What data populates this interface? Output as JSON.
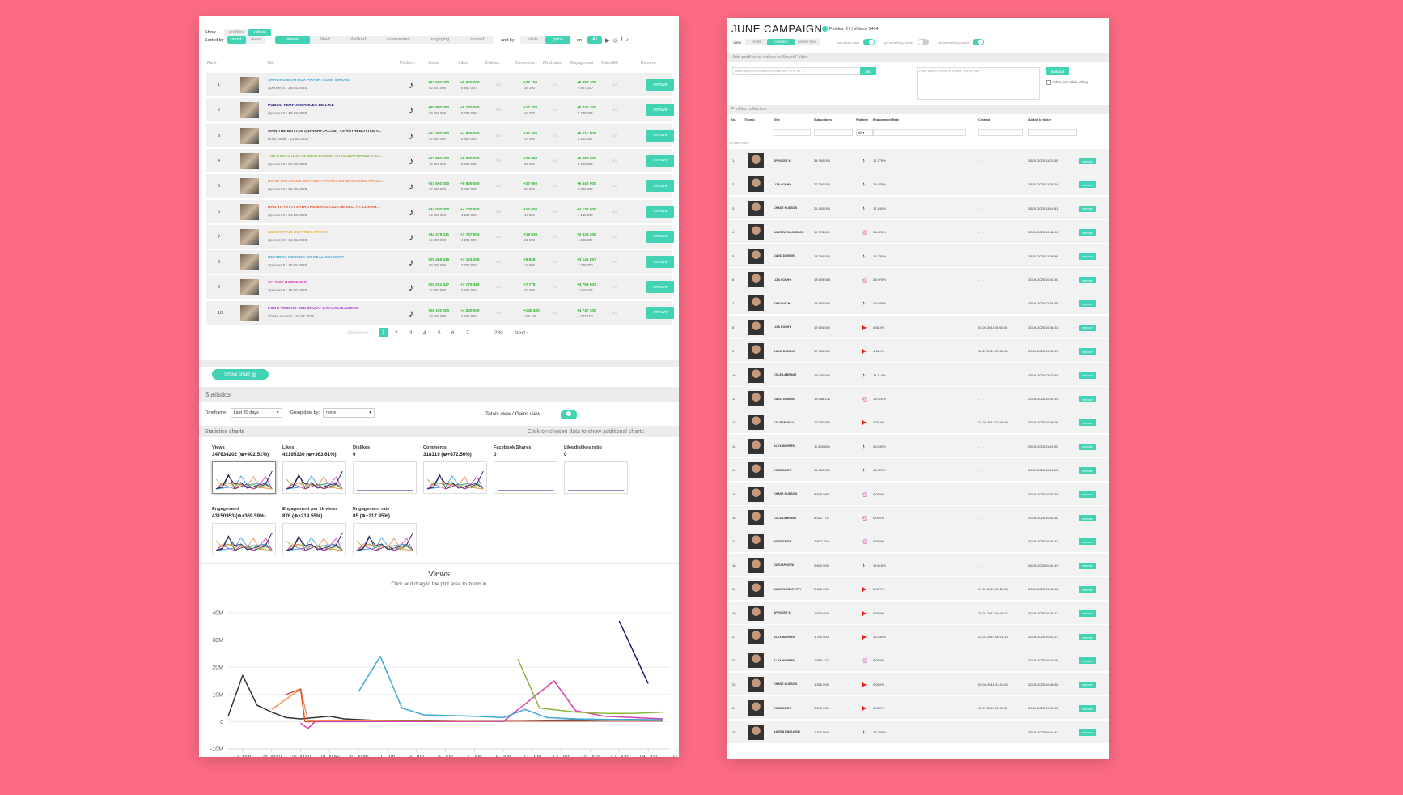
{
  "left": {
    "show_label": "Show",
    "show_tabs": [
      "profiles",
      "videos"
    ],
    "sorted_label": "Sorted by",
    "sort_tabs": [
      "most",
      "least"
    ],
    "metric_tabs": [
      "viewed",
      "liked",
      "disliked",
      "commented",
      "engaging",
      "shared"
    ],
    "andby_label": "and by",
    "andby_tabs": [
      "totals",
      "gains"
    ],
    "on_label": "on",
    "on_all": "All",
    "headers": [
      "Rank",
      "Title",
      "Platform",
      "Views",
      "Likes",
      "Dislikes",
      "Comments",
      "FB shares",
      "Engagement",
      "Video ER",
      "Remove"
    ],
    "rows": [
      {
        "rank": "1",
        "title": "SHAVING BEATBOX PRANK GONE WRONG",
        "sub": "Spencer X : 29.05.2020",
        "color": "#3fa9d6",
        "views_g": "+62 600 000",
        "views_t": "62 600 000",
        "likes_g": "+6 900 000",
        "likes_t": "6 900 000",
        "dis": "n/a",
        "com_g": "+36 100",
        "com_t": "36 100",
        "fb": "n/a",
        "eng_g": "+6 957 200",
        "eng_t": "6 957 200",
        "er": "n/a"
      },
      {
        "rank": "2",
        "title": "PUBLIC PERFORMANCES BE LIKE",
        "sub": "Spencer X : 16.06.2020",
        "color": "#1a1a7a",
        "views_g": "+50 900 000",
        "views_t": "50 900 000",
        "likes_g": "+5 700 000",
        "likes_t": "5 700 000",
        "dis": "n/a",
        "com_g": "+17 700",
        "com_t": "17 700",
        "fb": "n/a",
        "eng_g": "+5 748 700",
        "eng_t": "5 748 700",
        "er": "n/a"
      },
      {
        "rank": "3",
        "title": "SPIN THE BOTTLE @DWARFJACOB_ #SPINTHEBOTTLE #...",
        "sub": "Ross Smith : 21.05.2020",
        "color": "#333333",
        "views_g": "+44 300 000",
        "views_t": "44 300 000",
        "likes_g": "+4 800 000",
        "likes_t": "4 800 000",
        "dis": "n/a",
        "com_g": "+37 400",
        "com_t": "37 400",
        "fb": "n/a",
        "eng_g": "+5 211 500",
        "eng_t": "5 211 500",
        "er": "n/a"
      },
      {
        "rank": "4",
        "title": "THE EVOLUTION OF BEATBOXING #ITSJONATHANLE #JU...",
        "sub": "Spencer X : 07.06.2020",
        "color": "#8bb83a",
        "views_g": "+42 800 000",
        "views_t": "42 800 000",
        "likes_g": "+5 900 000",
        "likes_t": "5 900 000",
        "dis": "n/a",
        "com_g": "+26 000",
        "com_t": "26 000",
        "fb": "n/a",
        "eng_g": "+5 969 000",
        "eng_t": "5 969 000",
        "er": "n/a"
      },
      {
        "rank": "5",
        "title": "BONE CRACKING BEATBOX PRANK GONE WRONG #ITSJO...",
        "sub": "Spencer X : 25.05.2020",
        "color": "#f0905a",
        "views_g": "+37 600 000",
        "views_t": "37 600 000",
        "likes_g": "+5 800 000",
        "likes_t": "5 800 000",
        "dis": "n/a",
        "com_g": "+27 000",
        "com_t": "27 000",
        "fb": "n/a",
        "eng_g": "+5 842 900",
        "eng_t": "5 842 900",
        "er": "n/a"
      },
      {
        "rank": "6",
        "title": "HAD TO HIT IT WITH THE BROS #JUSTMAIKO #ITSJONAT...",
        "sub": "Spencer X : 24.05.2020",
        "color": "#e0502a",
        "views_g": "+34 000 000",
        "views_t": "34 000 000",
        "likes_g": "+4 100 000",
        "likes_t": "4 100 000",
        "dis": "n/a",
        "com_g": "+14 500",
        "com_t": "14 500",
        "fb": "n/a",
        "eng_g": "+4 138 900",
        "eng_t": "4 138 900",
        "er": "n/a"
      },
      {
        "rank": "7",
        "title": "KIDNAPPING BEATBOX PRANK",
        "sub": "Spencer X : 14.05.2020",
        "color": "#f0b030",
        "views_g": "+34 278 231",
        "views_t": "34 200 000",
        "likes_g": "+3 787 092",
        "likes_t": "4 200 000",
        "dis": "n/a",
        "com_g": "+19 030",
        "com_t": "21 600",
        "fb": "n/a",
        "eng_g": "+3 838 400",
        "eng_t": "4 245 000",
        "er": "n/a"
      },
      {
        "rank": "8",
        "title": "BEATBOX SOUNDS OR REAL SOUNDS?",
        "sub": "Spencer X : 16.05.2020",
        "color": "#3fa9d6",
        "views_g": "+29 468 336",
        "views_t": "58 800 000",
        "likes_g": "+3 124 206",
        "likes_t": "7 700 000",
        "dis": "n/a",
        "com_g": "+5 839",
        "com_t": "14 600",
        "fb": "n/a",
        "eng_g": "+3 141 057",
        "eng_t": "7 736 000",
        "er": "n/a"
      },
      {
        "rank": "9",
        "title": "SO THIS HAPPENED...",
        "sub": "Spencer X : 18.05.2020",
        "color": "#d63fb0",
        "views_g": "+29 261 347",
        "views_t": "34 300 000",
        "likes_g": "+3 779 486",
        "likes_t": "3 500 000",
        "dis": "n/a",
        "com_g": "+7 779",
        "com_t": "10 200",
        "fb": "n/a",
        "eng_g": "+3 793 603",
        "eng_t": "3 510 427",
        "er": "n/a"
      },
      {
        "rank": "10",
        "title": "LONG TIME NO SEE BRUVV @CHARLIDAMELIO",
        "sub": "Chase Hudson : 10.06.2020",
        "color": "#a53ed6",
        "views_g": "+28 100 000",
        "views_t": "28 100 000",
        "likes_g": "+4 500 000",
        "likes_t": "4 500 000",
        "dis": "n/a",
        "com_g": "+145 400",
        "com_t": "145 400",
        "fb": "n/a",
        "eng_g": "+4 747 100",
        "eng_t": "4 747 100",
        "er": "n/a"
      }
    ],
    "remove_label": "remove",
    "pagination": [
      "‹ Previous",
      "1",
      "2",
      "3",
      "4",
      "5",
      "6",
      "7",
      "...",
      "239",
      "Next ›"
    ],
    "show_chart": "Show chart",
    "statistics": "Statistics",
    "timeframe_label": "Timeframe:",
    "timeframe_value": "Last 30 days",
    "group_label": "Group date by:",
    "group_value": "none",
    "totals_gains": "Totals view / Gains view",
    "stat_charts": "Statistics charts",
    "click_hint": "Click on chosen data to show additional charts",
    "mini": [
      {
        "t": "Views",
        "v": "347634202 (⊕+402.51%)"
      },
      {
        "t": "Likes",
        "v": "42195330 (⊕+363.61%)"
      },
      {
        "t": "Dislikes",
        "v": "0"
      },
      {
        "t": "Comments",
        "v": "318319 (⊕+872.56%)"
      },
      {
        "t": "Facebook Shares",
        "v": "0"
      },
      {
        "t": "Like/dislikes ratio",
        "v": "0"
      },
      {
        "t": "Engagement",
        "v": "43150953 (⊕+369.59%)"
      },
      {
        "t": "Engagement per 1k views",
        "v": "876 (⊕+219.55%)"
      },
      {
        "t": "Engagement rate",
        "v": "85 (⊕+217.95%)"
      }
    ]
  },
  "chart_data": {
    "type": "line",
    "title": "Views",
    "subtitle": "Click and drag in the plot area to zoom in",
    "ylim": [
      -10000000,
      40000000
    ],
    "yticks": [
      "40M",
      "30M",
      "20M",
      "10M",
      "0",
      "-10M"
    ],
    "x": [
      "22. May",
      "24. May",
      "26. May",
      "28. May",
      "30. May",
      "1. Jun",
      "3. Jun",
      "5. Jun",
      "7. Jun",
      "9. Jun",
      "11. Jun",
      "13. Jun",
      "15. Jun",
      "17. Jun",
      "19. Jun",
      "21. ."
    ],
    "series": [
      {
        "color": "#333333",
        "points": [
          [
            21,
            2000000
          ],
          [
            22,
            17000000
          ],
          [
            23,
            6000000
          ],
          [
            24,
            3500000
          ],
          [
            25,
            1500000
          ],
          [
            26,
            1000000
          ],
          [
            27,
            1500000
          ],
          [
            28,
            2000000
          ],
          [
            29,
            1000000
          ],
          [
            31,
            500000
          ],
          [
            33,
            500000
          ],
          [
            35,
            500000
          ],
          [
            37,
            400000
          ],
          [
            39,
            400000
          ],
          [
            41,
            400000
          ],
          [
            43,
            500000
          ],
          [
            45,
            600000
          ],
          [
            47,
            700000
          ],
          [
            49,
            800000
          ],
          [
            51,
            400000
          ]
        ]
      },
      {
        "color": "#f0905a",
        "points": [
          [
            24,
            4500000
          ],
          [
            26,
            12000000
          ],
          [
            26.5,
            500000
          ],
          [
            28,
            500000
          ],
          [
            30,
            500000
          ],
          [
            34,
            400000
          ],
          [
            40,
            300000
          ],
          [
            51,
            300000
          ]
        ]
      },
      {
        "color": "#e0502a",
        "points": [
          [
            25,
            10000000
          ],
          [
            26,
            12000000
          ],
          [
            26.3,
            0
          ],
          [
            30,
            200000
          ],
          [
            40,
            200000
          ],
          [
            51,
            200000
          ]
        ]
      },
      {
        "color": "#d63fb0",
        "points": [
          [
            26,
            -500000
          ],
          [
            26.5,
            -2500000
          ],
          [
            27,
            0
          ],
          [
            40,
            100000
          ],
          [
            43.5,
            15000000
          ],
          [
            45,
            4000000
          ],
          [
            47,
            2000000
          ],
          [
            51,
            1000000
          ]
        ]
      },
      {
        "color": "#3fa9d6",
        "points": [
          [
            30,
            11000000
          ],
          [
            31.5,
            24000000
          ],
          [
            33,
            5000000
          ],
          [
            34.5,
            2500000
          ],
          [
            36,
            2300000
          ],
          [
            38,
            2000000
          ],
          [
            40,
            1500000
          ],
          [
            41.5,
            4500000
          ],
          [
            43,
            1500000
          ],
          [
            45,
            1000000
          ],
          [
            47,
            800000
          ],
          [
            51,
            700000
          ]
        ]
      },
      {
        "color": "#8bb83a",
        "points": [
          [
            41,
            23000000
          ],
          [
            42.5,
            5000000
          ],
          [
            45,
            3500000
          ],
          [
            47,
            3000000
          ],
          [
            49,
            3000000
          ],
          [
            51,
            3500000
          ]
        ]
      },
      {
        "color": "#1a1a7a",
        "points": [
          [
            48,
            37000000
          ],
          [
            50,
            14000000
          ]
        ]
      }
    ]
  },
  "right": {
    "title": "JUNE CAMPAIGN",
    "counts": "Profiles: 27 | Videos: 2404",
    "view_label": "View",
    "view_tabs": [
      "charts",
      "collection",
      "content feed"
    ],
    "auto_fetch": "auto-fetch video",
    "get_missing": "get remaining videos",
    "allow_tracking": "allows tracking media",
    "add_section": "Add profiles or videos to Smart Folder",
    "add_placeholder": "paste link (URL) to video or profile on YT, FB, IG, TT",
    "add_btn": "Add",
    "bulk_placeholder": "Paste links to videos or profiles, one per line",
    "bulk_btn": "Bulk add",
    "show_info": "Show info while adding",
    "collection": "Profiles collection",
    "headers": [
      "No.",
      "Thumb",
      "Title",
      "Subscribers",
      "Platform",
      "Engagement Rate",
      "Created",
      "Added to folder"
    ],
    "platform_filter": "All",
    "no_filters": "No active filters",
    "rows": [
      {
        "n": "1",
        "name": "SPENCER X",
        "subs": "34 900 000",
        "pf": "tt",
        "er": "12.770%",
        "created": "-",
        "added": "26.05.2020 11:07:30"
      },
      {
        "n": "2",
        "name": "LIZA KOSHY",
        "subs": "22 200 000",
        "pf": "tt",
        "er": "15.070%",
        "created": "-",
        "added": "26.05.2020 11:05:24"
      },
      {
        "n": "3",
        "name": "CHASE HUDSON",
        "subs": "21 400 000",
        "pf": "tt",
        "er": "17.460%",
        "created": "-",
        "added": "26.05.2020 11:44:51"
      },
      {
        "n": "4",
        "name": "ANDREW BACHELOR",
        "subs": "19 778 691",
        "pf": "ig",
        "er": "15.620%",
        "created": "-",
        "added": "20.06.2020 19:42:06"
      },
      {
        "n": "5",
        "name": "DAVID DOBRIK",
        "subs": "18 700 000",
        "pf": "tt",
        "er": "18.780%",
        "created": "-",
        "added": "26.05.2020 11:36:56"
      },
      {
        "n": "6",
        "name": "LIZA KOSHY",
        "subs": "18 509 083",
        "pf": "ig",
        "er": "23.970%",
        "created": "-",
        "added": "20.06.2020 19:41:30"
      },
      {
        "n": "7",
        "name": "KIRIONACH",
        "subs": "18 100 000",
        "pf": "tt",
        "er": "15.680%",
        "created": "-",
        "added": "26.05.2020 11:38:29"
      },
      {
        "n": "8",
        "name": "LIZA KOSHY",
        "subs": "17 600 000",
        "pf": "yt",
        "er": "4.510%",
        "created": "03.09.2011 00:55:05",
        "added": "20.06.2020 19:46:31"
      },
      {
        "n": "9",
        "name": "DAVID DOBRIK",
        "subs": "17 700 000",
        "pf": "yt",
        "er": "4.110%",
        "created": "18.12.2014 23:35:50",
        "added": "20.06.2020 19:45:37"
      },
      {
        "n": "10",
        "name": "COLE LABRANT",
        "subs": "15 000 000",
        "pf": "tt",
        "er": "14.110%",
        "created": "-",
        "added": "26.05.2020 11:07:54"
      },
      {
        "n": "11",
        "name": "DAVID DOBRIK",
        "subs": "13 086 130",
        "pf": "ig",
        "er": "19.010%",
        "created": "-",
        "added": "20.06.2020 19:44:16"
      },
      {
        "n": "12",
        "name": "COLEANDSAV",
        "subs": "12 000 000",
        "pf": "yt",
        "er": "2.010%",
        "created": "24.08.2012 03:44:00",
        "added": "20.06.2020 19:46:06"
      },
      {
        "n": "13",
        "name": "ALEX WARREN",
        "subs": "11 800 000",
        "pf": "tt",
        "er": "23.090%",
        "created": "-",
        "added": "26.05.2020 11:40:02"
      },
      {
        "n": "14",
        "name": "ROSS SMITH",
        "subs": "10 100 000",
        "pf": "tt",
        "er": "16.320%",
        "created": "-",
        "added": "26.05.2020 11:43:20"
      },
      {
        "n": "15",
        "name": "CHASE HUDSON",
        "subs": "8 595 588",
        "pf": "ig",
        "er": "0.000%",
        "created": "-",
        "added": "20.06.2020 19:39:36"
      },
      {
        "n": "16",
        "name": "COLE LABRANT",
        "subs": "5 022 772",
        "pf": "ig",
        "er": "0.000%",
        "created": "-",
        "added": "20.06.2020 19:42:50"
      },
      {
        "n": "17",
        "name": "ROSS SMITH",
        "subs": "2 802 754",
        "pf": "ig",
        "er": "0.000%",
        "created": "-",
        "added": "20.06.2020 19:40:37"
      },
      {
        "n": "18",
        "name": "OURJAPNOVA",
        "subs": "2 600 000",
        "pf": "tt",
        "er": "19.610%",
        "created": "-",
        "added": "26.05.2020 09:44:19"
      },
      {
        "n": "19",
        "name": "BACHELORSPOTTY",
        "subs": "2 420 000",
        "pf": "yt",
        "er": "2.470%",
        "created": "17.01.2013 05:26:53",
        "added": "20.06.2020 19:48:36"
      },
      {
        "n": "20",
        "name": "SPENCER X",
        "subs": "1 970 000",
        "pf": "yt",
        "er": "0.000%",
        "created": "15.01.2013 06:42:24",
        "added": "20.06.2020 19:49:12"
      },
      {
        "n": "21",
        "name": "ALEX WARREN",
        "subs": "1 780 000",
        "pf": "yt",
        "er": "10.260%",
        "created": "24.01.2014 06:16:19",
        "added": "20.06.2020 19:47:27"
      },
      {
        "n": "22",
        "name": "ALEX WARREN",
        "subs": "1 656 177",
        "pf": "ig",
        "er": "0.000%",
        "created": "-",
        "added": "20.06.2020 19:41:09"
      },
      {
        "n": "23",
        "name": "CHASE HUDSON",
        "subs": "1 260 000",
        "pf": "yt",
        "er": "0.000%",
        "created": "09.05.2018 04:21:06",
        "added": "20.06.2020 19:46:58"
      },
      {
        "n": "24",
        "name": "ROSS SMITH",
        "subs": "1 240 000",
        "pf": "yt",
        "er": "1.060%",
        "created": "11.07.2019 06:38:33",
        "added": "20.06.2020 19:47:52"
      },
      {
        "n": "25",
        "name": "AARON ENGLKOW",
        "subs": "1 200 000",
        "pf": "tt",
        "er": "17.320%",
        "created": "-",
        "added": "26.05.2020 09:44:42"
      }
    ],
    "remove_label": "remove"
  }
}
